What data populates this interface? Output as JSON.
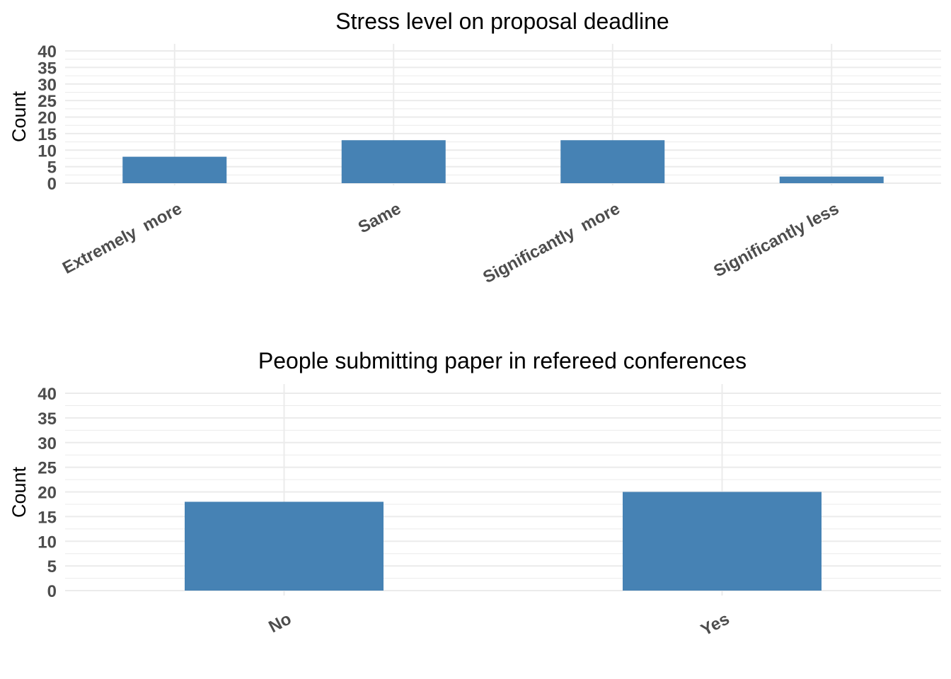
{
  "chart_data": [
    {
      "type": "bar",
      "title": "Stress level on proposal deadline",
      "xlabel": "",
      "ylabel": "Count",
      "categories": [
        "Extremely  more",
        "Same",
        "Significantly  more",
        "Significantly less"
      ],
      "values": [
        8,
        13,
        13,
        2
      ],
      "ylim": [
        0,
        40
      ],
      "yticks": [
        0,
        5,
        10,
        15,
        20,
        25,
        30,
        35,
        40
      ],
      "bar_color": "#4682b4",
      "grid": true
    },
    {
      "type": "bar",
      "title": "People submitting paper in refereed conferences",
      "xlabel": "",
      "ylabel": "Count",
      "categories": [
        "No",
        "Yes"
      ],
      "values": [
        18,
        20
      ],
      "ylim": [
        0,
        40
      ],
      "yticks": [
        0,
        5,
        10,
        15,
        20,
        25,
        30,
        35,
        40
      ],
      "bar_color": "#4682b4",
      "grid": true
    }
  ]
}
